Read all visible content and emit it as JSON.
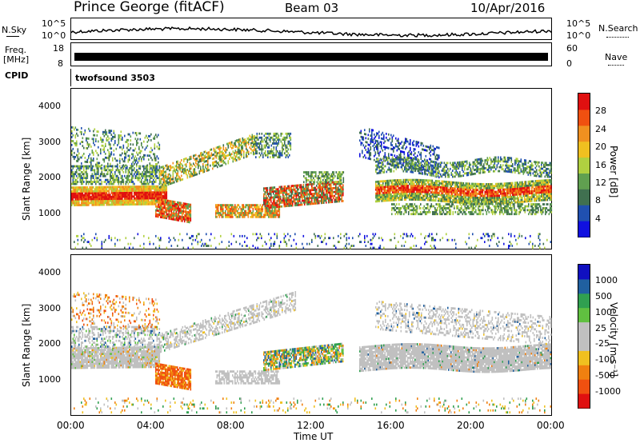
{
  "header": {
    "station": "Prince George (fitACF)",
    "beam": "Beam 03",
    "date": "10/Apr/2016"
  },
  "strips": {
    "nsky_label": "N.Sky",
    "nsky_left_top": "10^5",
    "nsky_left_bottom": "10^0",
    "nsky_right_top": "10^5",
    "nsky_right_bottom": "10^0",
    "nsearch_label": "N.Search",
    "freq_label_1": "Freq.",
    "freq_label_2": "[MHz]",
    "freq_top": "18",
    "freq_bottom": "8",
    "nave_top": "60",
    "nave_bottom": "0",
    "nave_label": "Nave",
    "cpid_label": "CPID",
    "cpid_value": "twofsound 3503"
  },
  "colors": {
    "power": [
      "#1010e0",
      "#2050b0",
      "#407050",
      "#60a050",
      "#b0d040",
      "#f0c020",
      "#f09020",
      "#f05010",
      "#e01010"
    ],
    "velocity": [
      "#e01010",
      "#f05010",
      "#f08010",
      "#f0c020",
      "#c0c0c0",
      "#c0c0c0",
      "#60c040",
      "#30a050",
      "#2060a0",
      "#1010c0"
    ]
  },
  "chart_data": [
    {
      "type": "heatmap",
      "name": "power",
      "ylabel": "Slant Range [km]",
      "yticks": [
        "1000",
        "2000",
        "3000",
        "4000"
      ],
      "ylim": [
        0,
        4500
      ],
      "xlim": [
        "00:00",
        "24:00"
      ],
      "colorbar_label": "Power [dB]",
      "colorbar_ticks": [
        "4",
        "8",
        "12",
        "16",
        "20",
        "24",
        "28"
      ],
      "colorbar_range": [
        0,
        32
      ]
    },
    {
      "type": "heatmap",
      "name": "velocity",
      "ylabel": "Slant Range [km]",
      "yticks": [
        "1000",
        "2000",
        "3000",
        "4000"
      ],
      "ylim": [
        0,
        4500
      ],
      "xlim": [
        "00:00",
        "24:00"
      ],
      "xticks": [
        "00:00",
        "04:00",
        "08:00",
        "12:00",
        "16:00",
        "20:00",
        "00:00"
      ],
      "xlabel": "Time UT",
      "colorbar_label": "Velocity [m s⁻¹]",
      "colorbar_ticks": [
        "1000",
        "500",
        "100",
        "25",
        "-25",
        "-100",
        "-500",
        "-1000"
      ]
    }
  ]
}
